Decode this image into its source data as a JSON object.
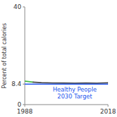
{
  "chart_data": {
    "type": "line",
    "title": "",
    "ylabel": "Percent of total calories",
    "x": [
      1988,
      1991,
      1994,
      1998,
      2002,
      2006,
      2010,
      2014,
      2018
    ],
    "series": [
      {
        "color": "#44bb44",
        "values": [
          9.6,
          9.2,
          null,
          null,
          null,
          null,
          null,
          null,
          null
        ]
      },
      {
        "color": "#444444",
        "values": [
          null,
          9.2,
          9.0,
          8.85,
          8.8,
          8.78,
          8.8,
          8.78,
          8.9
        ]
      }
    ],
    "target": {
      "value": 8.4,
      "label": "Healthy People\n2030 Target",
      "x": 2006,
      "color": "#2255ee"
    },
    "xlim": [
      1988,
      2018
    ],
    "ylim": [
      0,
      40
    ],
    "xticks": [
      1988,
      2018
    ],
    "yticks": [
      0,
      8.4,
      40
    ],
    "grid": false
  }
}
